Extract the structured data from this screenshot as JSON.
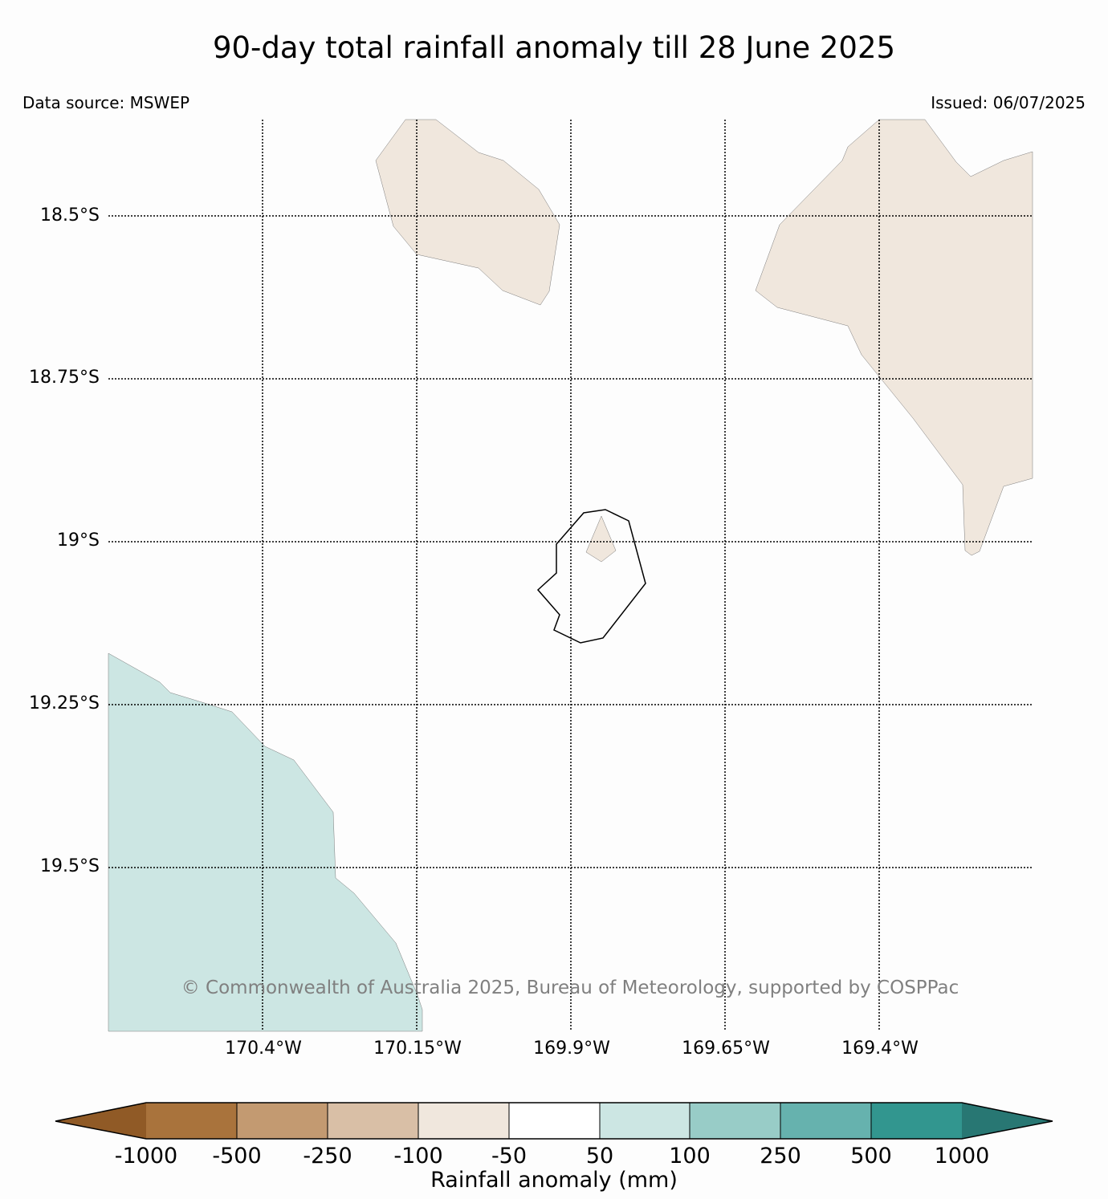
{
  "title": "90-day total rainfall anomaly till 28 June 2025",
  "data_source": "Data source: MSWEP",
  "issued": "Issued: 06/07/2025",
  "copyright": "© Commonwealth of Australia 2025, Bureau of Meteorology, supported by COSPPac",
  "lat_labels": [
    "18.5°S",
    "18.75°S",
    "19°S",
    "19.25°S",
    "19.5°S"
  ],
  "lon_labels": [
    "170.4°W",
    "170.15°W",
    "169.9°W",
    "169.65°W",
    "169.4°W"
  ],
  "colorbar": {
    "title": "Rainfall anomaly (mm)",
    "ticks": [
      "-1000",
      "-500",
      "-250",
      "-100",
      "-50",
      "50",
      "100",
      "250",
      "500",
      "1000"
    ],
    "colors": [
      "#905a26",
      "#a9733c",
      "#c39a71",
      "#d9bfa6",
      "#f0e7dd",
      "#ffffff",
      "#cce6e3",
      "#98ccc7",
      "#66b2ae",
      "#32968f",
      "#287773"
    ]
  },
  "regions": [
    {
      "name": "northwest",
      "category": "-100 to -50",
      "color": "#f0e7dd"
    },
    {
      "name": "northeast",
      "category": "-100 to -50",
      "color": "#f0e7dd"
    },
    {
      "name": "central",
      "category": "-100 to -50",
      "color": "#f0e7dd"
    },
    {
      "name": "southwest",
      "category": "50 to 100",
      "color": "#cce6e3"
    }
  ]
}
